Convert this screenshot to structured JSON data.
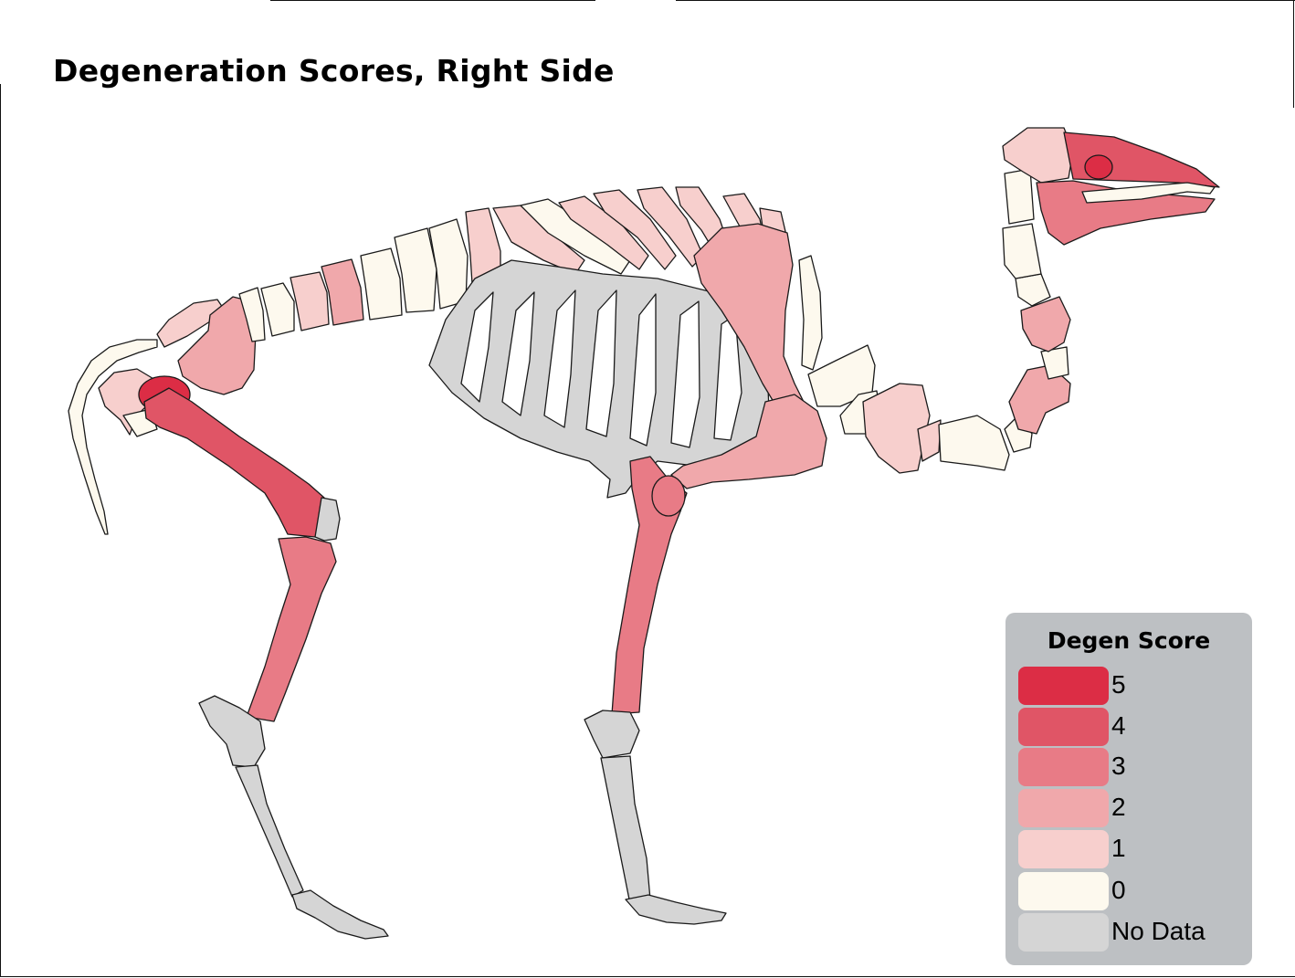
{
  "title": "Degeneration Scores, Right Side",
  "legend": {
    "title": "Degen Score",
    "items": [
      {
        "label": "5",
        "color": "#dc2d45"
      },
      {
        "label": "4",
        "color": "#e05566"
      },
      {
        "label": "3",
        "color": "#e87b86"
      },
      {
        "label": "2",
        "color": "#f0a8ab"
      },
      {
        "label": "1",
        "color": "#f7cfcd"
      },
      {
        "label": "0",
        "color": "#fdf9ee"
      },
      {
        "label": "No Data",
        "color": "#d5d5d5"
      }
    ]
  },
  "colors": {
    "outline": "#1a1a1a",
    "background": "#ffffff",
    "legend_panel": "#bdc0c3"
  }
}
